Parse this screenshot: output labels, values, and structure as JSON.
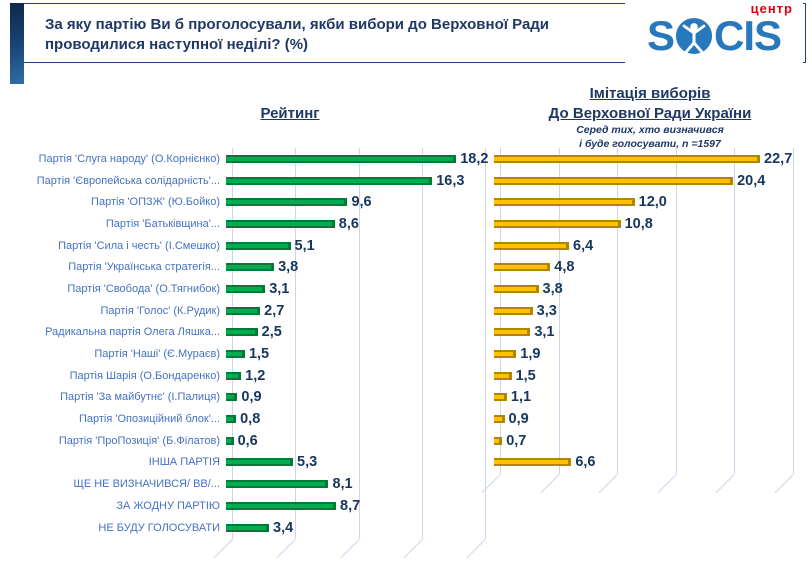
{
  "header": {
    "title": "За яку партію Ви б проголосували, якби вибори до Верховної Ради проводилися наступної неділі? (%)",
    "logo": {
      "top_label": "центр",
      "brand_prefix": "S",
      "brand_suffix": "CIS",
      "icon": "person-in-circle-icon"
    }
  },
  "colors": {
    "title_navy": "#1F3864",
    "category_label_blue": "#4472C4",
    "value_label_navy": "#17365D",
    "rating_green": "#00AC50",
    "imitation_yellow": "#FFC000",
    "gridline": "#CBD5EE",
    "logo_blue": "#2878BE",
    "logo_red": "#E3000F"
  },
  "chart_data": {
    "type": "bar",
    "orientation": "horizontal",
    "grid": true,
    "value_label_format": "one decimal, comma as decimal separator",
    "categories": [
      "Партія 'Слуга народу' (О.Корнієнко)",
      "Партія 'Європейська солідарність'...",
      "Партія 'ОПЗЖ' (Ю.Бойко)",
      "Партія 'Батьківщина'...",
      "Партія 'Сила і честь' (І.Смешко)",
      "Партія 'Українська стратегія...",
      "Партія 'Свобода' (О.Тягнибок)",
      "Партія 'Голос' (К.Рудик)",
      "Радикальна партія Олега Ляшка...",
      "Партія 'Наші' (Є.Мураєв)",
      "Партія Шарія (О.Бондаренко)",
      "Партія 'За майбутнє' (І.Палиця)",
      "Партія 'Опозиційний блок'...",
      "Партія 'ПроПозиція' (Б.Філатов)",
      "ІНША ПАРТІЯ",
      "ЩЕ НЕ ВИЗНАЧИВСЯ/ ВВ/...",
      "ЗА ЖОДНУ ПАРТІЮ",
      "НЕ БУДУ ГОЛОСУВАТИ"
    ],
    "series": [
      {
        "name": "Рейтинг",
        "color": "#00AC50",
        "edge_color": "#007A38",
        "axis_max": 20,
        "gridline_step": 5,
        "values": [
          18.2,
          16.3,
          9.6,
          8.6,
          5.1,
          3.8,
          3.1,
          2.7,
          2.5,
          1.5,
          1.2,
          0.9,
          0.8,
          0.6,
          5.3,
          8.1,
          8.7,
          3.4
        ]
      },
      {
        "name": "Імітація виборів До Верховної Ради України",
        "title_lines": [
          "Імітація виборів",
          "До Верховної Ради України"
        ],
        "subtitle_lines": [
          "Серед тих, хто визначився",
          "і буде голосувати, n =1597"
        ],
        "color": "#FFC000",
        "edge_color": "#B18500",
        "axis_max": 25,
        "gridline_step": 5,
        "values": [
          22.7,
          20.4,
          12.0,
          10.8,
          6.4,
          4.8,
          3.8,
          3.3,
          3.1,
          1.9,
          1.5,
          1.1,
          0.9,
          0.7,
          6.6,
          null,
          null,
          null
        ]
      }
    ]
  }
}
